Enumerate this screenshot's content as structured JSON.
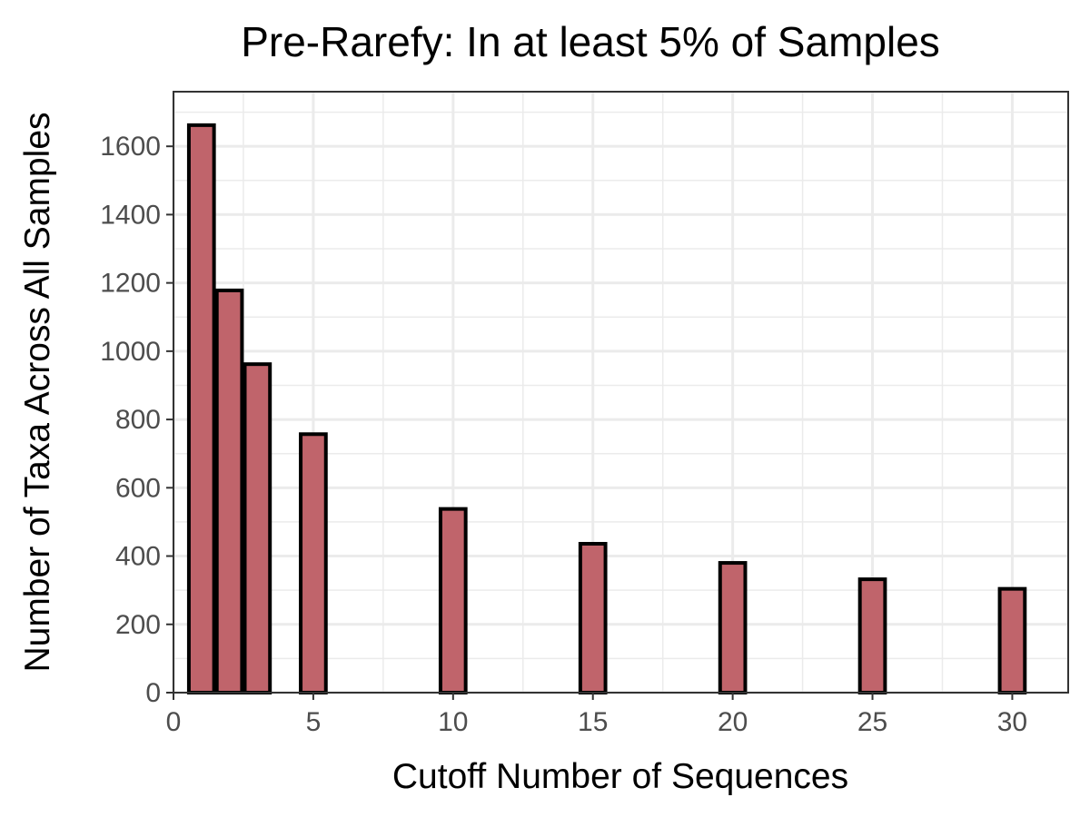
{
  "chart_data": {
    "type": "bar",
    "title": "Pre-Rarefy: In at least 5% of Samples",
    "xlabel": "Cutoff Number of Sequences",
    "ylabel": "Number of Taxa Across All Samples",
    "x": [
      1,
      2,
      3,
      5,
      10,
      15,
      20,
      25,
      30
    ],
    "values": [
      1662,
      1178,
      962,
      757,
      538,
      436,
      380,
      332,
      304
    ],
    "xlim": [
      0,
      32
    ],
    "ylim": [
      0,
      1760
    ],
    "x_ticks": [
      0,
      5,
      10,
      15,
      20,
      25,
      30
    ],
    "y_ticks": [
      0,
      200,
      400,
      600,
      800,
      1000,
      1200,
      1400,
      1600
    ],
    "grid": true,
    "legend": "none",
    "colors": {
      "bar_fill": "#c0646b",
      "bar_outline": "#000000",
      "grid": "#ebebeb",
      "tick_label": "#4d4d4d"
    }
  }
}
